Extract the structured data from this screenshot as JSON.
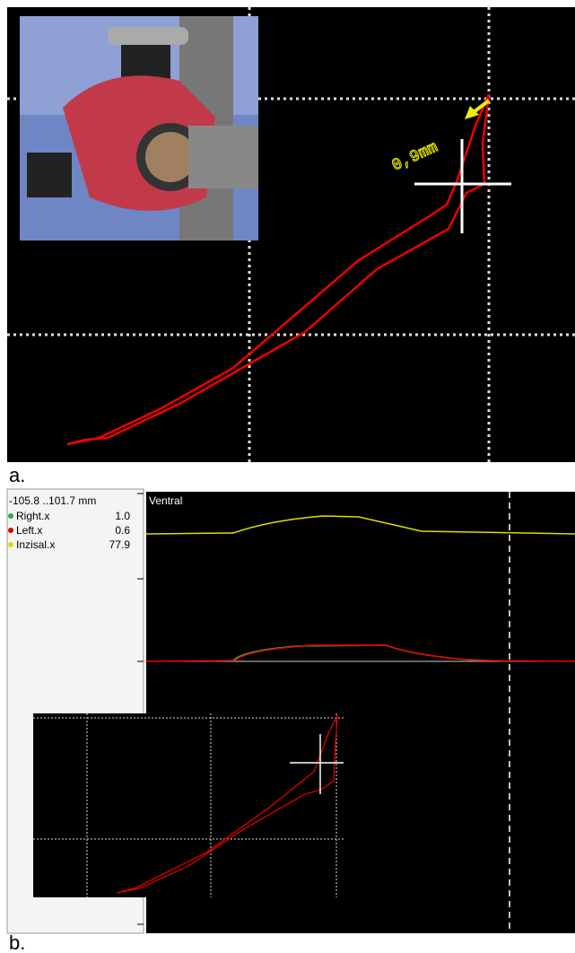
{
  "panel_a": {
    "label": "a.",
    "annotation": "0,9mm"
  },
  "panel_b": {
    "label": "b.",
    "range": "-105.8 ..101.7 mm",
    "legend": [
      {
        "name": "Right.x",
        "value": "1.0"
      },
      {
        "name": "Left.x",
        "value": "0.6"
      },
      {
        "name": "Inzisal.x",
        "value": "77.9"
      }
    ],
    "plot_label": "Ventral"
  }
}
